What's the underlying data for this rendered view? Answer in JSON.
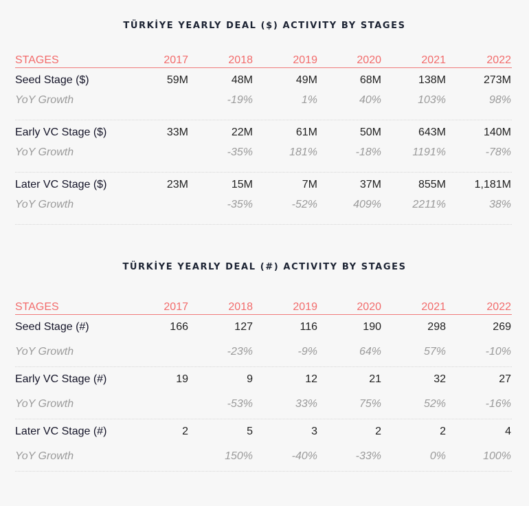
{
  "tables": [
    {
      "title": "TÜRKİYE YEARLY DEAL ($) ACTIVITY BY STAGES",
      "header": {
        "label": "STAGES",
        "years": [
          "2017",
          "2018",
          "2019",
          "2020",
          "2021",
          "2022"
        ]
      },
      "rows": [
        {
          "name": "Seed Stage ($)",
          "values": [
            "59M",
            "48M",
            "49M",
            "68M",
            "138M",
            "273M"
          ],
          "yoy_label": "YoY Growth",
          "yoy": [
            "",
            "-19%",
            "1%",
            "40%",
            "103%",
            "98%"
          ]
        },
        {
          "name": "Early VC Stage ($)",
          "values": [
            "33M",
            "22M",
            "61M",
            "50M",
            "643M",
            "140M"
          ],
          "yoy_label": "YoY Growth",
          "yoy": [
            "",
            "-35%",
            "181%",
            "-18%",
            "1191%",
            "-78%"
          ]
        },
        {
          "name": "Later VC Stage ($)",
          "values": [
            "23M",
            "15M",
            "7M",
            "37M",
            "855M",
            "1,181M"
          ],
          "yoy_label": "YoY Growth",
          "yoy": [
            "",
            "-35%",
            "-52%",
            "409%",
            "2211%",
            "38%"
          ]
        }
      ]
    },
    {
      "title": "TÜRKİYE YEARLY DEAL (#) ACTIVITY BY STAGES",
      "header": {
        "label": "STAGES",
        "years": [
          "2017",
          "2018",
          "2019",
          "2020",
          "2021",
          "2022"
        ]
      },
      "rows": [
        {
          "name": "Seed Stage (#)",
          "values": [
            "166",
            "127",
            "116",
            "190",
            "298",
            "269"
          ],
          "yoy_label": "YoY Growth",
          "yoy": [
            "",
            "-23%",
            "-9%",
            "64%",
            "57%",
            "-10%"
          ]
        },
        {
          "name": "Early VC Stage (#)",
          "values": [
            "19",
            "9",
            "12",
            "21",
            "32",
            "27"
          ],
          "yoy_label": "YoY Growth",
          "yoy": [
            "",
            "-53%",
            "33%",
            "75%",
            "52%",
            "-16%"
          ]
        },
        {
          "name": "Later VC Stage (#)",
          "values": [
            "2",
            "5",
            "3",
            "2",
            "2",
            "4"
          ],
          "yoy_label": "YoY Growth",
          "yoy": [
            "",
            "150%",
            "-40%",
            "-33%",
            "0%",
            "100%"
          ]
        }
      ]
    }
  ]
}
